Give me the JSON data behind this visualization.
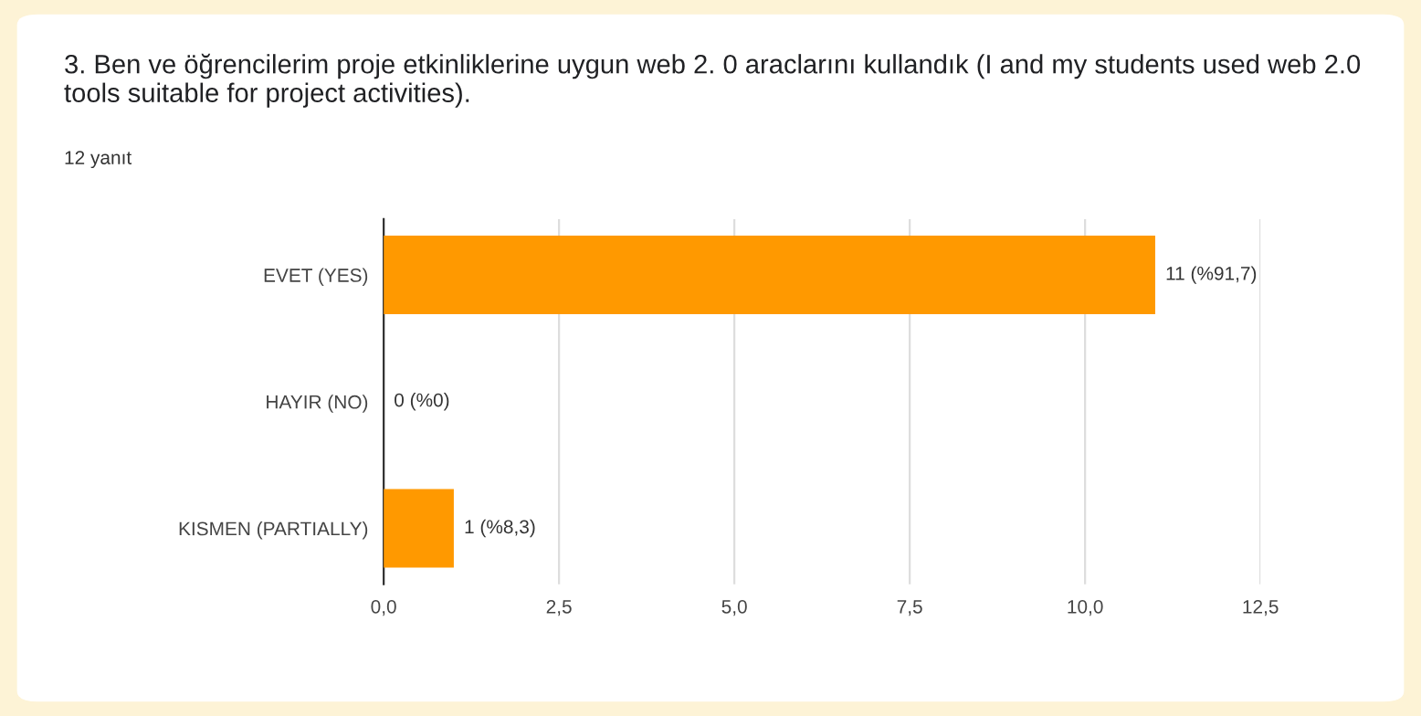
{
  "chart_data": {
    "type": "bar",
    "orientation": "horizontal",
    "title": "3. Ben ve öğrencilerim proje etkinliklerine uygun web 2. 0 araclarını kullandık (I and my students used web 2.0 tools suitable for project activities).",
    "subtitle": "12 yanıt",
    "categories": [
      "EVET (YES)",
      "HAYIR (NO)",
      "KISMEN (PARTIALLY)"
    ],
    "values": [
      11,
      0,
      1
    ],
    "value_labels": [
      "11 (%91,7)",
      "0 (%0)",
      "1 (%8,3)"
    ],
    "color": "#ff9900",
    "xlim": [
      0,
      12.5
    ],
    "xticks": [
      {
        "value": 0,
        "label": "0,0"
      },
      {
        "value": 2.5,
        "label": "2,5"
      },
      {
        "value": 5,
        "label": "5,0"
      },
      {
        "value": 7.5,
        "label": "7,5"
      },
      {
        "value": 10,
        "label": "10,0"
      },
      {
        "value": 12.5,
        "label": "12,5"
      }
    ],
    "grid": "x"
  }
}
